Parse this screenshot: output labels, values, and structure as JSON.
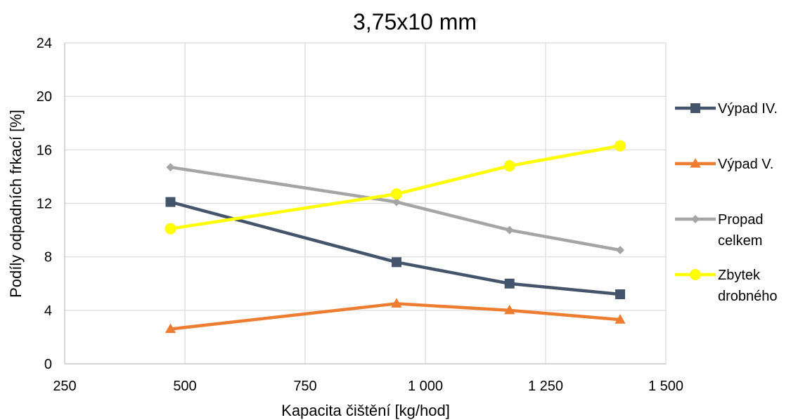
{
  "chart_data": {
    "type": "scatter",
    "title": "3,75x10 mm",
    "xlabel": "Kapacita čištění [kg/hod]",
    "ylabel": "Podíly odpadních frkací [%]",
    "xlim": [
      250,
      1500
    ],
    "ylim": [
      0,
      24
    ],
    "xticks": [
      250,
      500,
      750,
      1000,
      1250,
      1500
    ],
    "xtick_labels": [
      "250",
      "500",
      "750",
      "1 000",
      "1 250",
      "1 500"
    ],
    "yticks": [
      0,
      4,
      8,
      12,
      16,
      20,
      24
    ],
    "ytick_labels": [
      "0",
      "4",
      "8",
      "12",
      "16",
      "20",
      "24"
    ],
    "grid": true,
    "legend_position": "right",
    "series": [
      {
        "name": "Výpad IV.",
        "color": "#44546a",
        "marker": "square",
        "x": [
          470,
          940,
          1175,
          1405
        ],
        "y": [
          12.1,
          7.6,
          6.0,
          5.2
        ]
      },
      {
        "name": "Výpad V.",
        "color": "#ed7d31",
        "marker": "triangle",
        "x": [
          470,
          940,
          1175,
          1405
        ],
        "y": [
          2.6,
          4.5,
          4.0,
          3.3
        ]
      },
      {
        "name": "Propad celkem",
        "legend_lines": [
          "Propad",
          "celkem"
        ],
        "color": "#a5a5a5",
        "marker": "diamond",
        "x": [
          470,
          940,
          1175,
          1405
        ],
        "y": [
          14.7,
          12.1,
          10.0,
          8.5
        ]
      },
      {
        "name": "Zbytek drobného",
        "legend_lines": [
          "Zbytek",
          "drobného"
        ],
        "color": "#ffff00",
        "marker": "circle",
        "x": [
          470,
          940,
          1175,
          1405
        ],
        "y": [
          10.1,
          12.7,
          14.8,
          16.3
        ]
      }
    ]
  }
}
